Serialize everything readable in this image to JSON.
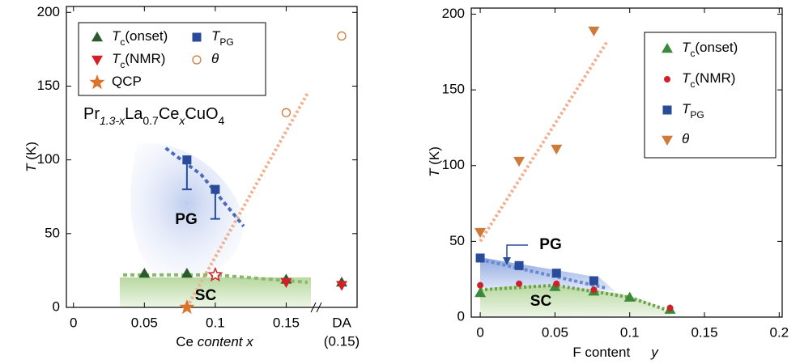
{
  "chart_data": [
    {
      "type": "scatter",
      "xlim": [
        -0.005,
        0.2
      ],
      "ylim": [
        0,
        204
      ],
      "xticks": [
        0,
        0.05,
        0.1,
        0.15
      ],
      "yticks": [
        0,
        50,
        100,
        150,
        200
      ],
      "xlabel": [
        "Ce ",
        "content x"
      ],
      "ylabel": [
        "T",
        " (K)"
      ],
      "formula": [
        "Pr",
        "1.3-x",
        "La",
        "0.7",
        "Ce",
        "x",
        "CuO",
        "4"
      ],
      "annotations": [
        "PG",
        "SC"
      ],
      "break_label": [
        "DA",
        "(0.15)"
      ],
      "series": [
        {
          "name": [
            "T",
            "c",
            "(onset)"
          ],
          "color": "#2d5a2d",
          "marker": "tri-up",
          "x": [
            0.05,
            0.08,
            0.15
          ],
          "y": [
            23,
            23,
            19
          ],
          "da": 17
        },
        {
          "name": [
            "T",
            "c",
            "(NMR)"
          ],
          "color": "#d0202a",
          "marker": "tri-down",
          "markers": [
            "star-open",
            "tri-down"
          ],
          "x": [
            0.1,
            0.15
          ],
          "y": [
            22,
            17
          ],
          "da": 15
        },
        {
          "name": [
            "QCP"
          ],
          "color": "#d9742a",
          "marker": "star",
          "x": [
            0.08
          ],
          "y": [
            0
          ]
        },
        {
          "name": [
            "T",
            "PG"
          ],
          "color": "#2a4a9a",
          "marker": "square",
          "x": [
            0.08,
            0.1
          ],
          "y": [
            100,
            80
          ],
          "error": [
            20,
            20
          ]
        },
        {
          "name": [
            "θ"
          ],
          "color": "#d07a3a",
          "marker": "circle-open",
          "x": [
            0.15
          ],
          "y": [
            132
          ],
          "da": 184
        }
      ],
      "guides": [
        {
          "color": "#4a6ab8",
          "dash": "5 4",
          "x": [
            0.065,
            0.09,
            0.12
          ],
          "y": [
            108,
            90,
            55
          ]
        },
        {
          "color": "#f0b090",
          "dash": "3 3",
          "x": [
            0.08,
            0.165
          ],
          "y": [
            0,
            145
          ]
        },
        {
          "color": "#8ab86a",
          "dash": "5 4",
          "x": [
            0.035,
            0.1,
            0.165
          ],
          "y": [
            22,
            22,
            17
          ]
        }
      ]
    },
    {
      "type": "scatter",
      "xlim": [
        -0.006,
        0.202
      ],
      "ylim": [
        0,
        204
      ],
      "xticks": [
        0,
        0.05,
        0.1,
        0.15,
        0.2
      ],
      "yticks": [
        0,
        50,
        100,
        150,
        200
      ],
      "xlabel": [
        "F content",
        "y"
      ],
      "ylabel": [
        "T",
        " (K)"
      ],
      "annotations": [
        "PG",
        "SC"
      ],
      "series": [
        {
          "name": [
            "T",
            "c",
            "(onset)"
          ],
          "color": "#3a8a3a",
          "marker": "tri-up",
          "x": [
            0,
            0.05,
            0.076,
            0.1,
            0.127
          ],
          "y": [
            16,
            20,
            17,
            13,
            5
          ]
        },
        {
          "name": [
            "T",
            "c",
            "(NMR)"
          ],
          "color": "#d0202a",
          "marker": "circle",
          "x": [
            0,
            0.026,
            0.051,
            0.076,
            0.127
          ],
          "y": [
            21,
            22,
            22,
            18,
            6
          ]
        },
        {
          "name": [
            "T",
            "PG"
          ],
          "color": "#2a4a9a",
          "marker": "square",
          "x": [
            0,
            0.026,
            0.051,
            0.076
          ],
          "y": [
            39,
            34,
            29,
            24
          ]
        },
        {
          "name": [
            "θ"
          ],
          "color": "#d07a3a",
          "marker": "tri-down",
          "x": [
            0,
            0.026,
            0.051,
            0.076
          ],
          "y": [
            56,
            103,
            111,
            189
          ]
        }
      ],
      "guides": [
        {
          "color": "#f0b090",
          "dash": "3 3",
          "x": [
            0,
            0.085
          ],
          "y": [
            50,
            182
          ]
        },
        {
          "color": "#6a8ad0",
          "dash": "4 3",
          "x": [
            0,
            0.085
          ],
          "y": [
            38,
            19
          ]
        },
        {
          "color": "#6aa04a",
          "dash": "3 3",
          "x": [
            0,
            0.05,
            0.1,
            0.127
          ],
          "y": [
            18,
            21,
            13,
            4
          ]
        }
      ]
    }
  ]
}
